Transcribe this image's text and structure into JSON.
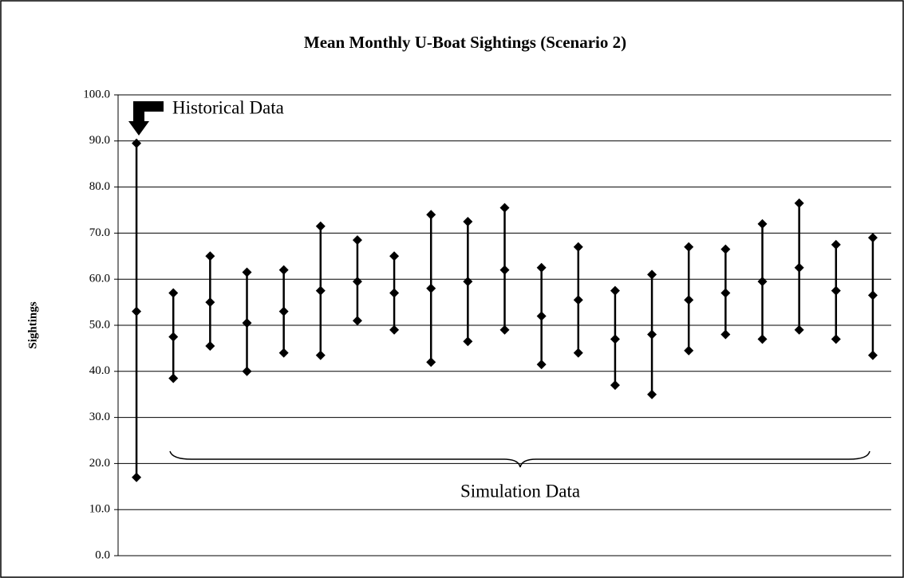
{
  "chart_data": {
    "type": "high-low",
    "title": "Mean Monthly U-Boat Sightings (Scenario 2)",
    "y_label": "Sightings",
    "annotations": [
      "Historical Data",
      "Simulation Data"
    ],
    "categories": [
      null,
      null,
      null,
      null,
      null,
      null,
      null,
      null,
      null,
      null,
      null,
      null,
      null,
      null,
      null,
      null,
      null,
      null,
      null,
      null,
      null
    ],
    "high": [
      89.5,
      57,
      65,
      61.5,
      62,
      71.5,
      68.5,
      65,
      74,
      72.5,
      75.5,
      62.5,
      67,
      57.5,
      61,
      67,
      66.5,
      72,
      76.5,
      67.5,
      69
    ],
    "values": [
      53,
      47.5,
      55,
      50.5,
      53,
      57.5,
      59.5,
      57,
      58,
      59.5,
      62,
      52,
      55.5,
      47,
      48,
      55.5,
      57,
      59.5,
      62.5,
      57.5,
      56.5
    ],
    "low": [
      17,
      38.5,
      45.5,
      40,
      44,
      43.5,
      51,
      49,
      42,
      46.5,
      49,
      41.5,
      44,
      37,
      35,
      44.5,
      48,
      47,
      49,
      47,
      43.5
    ],
    "color": "#000000",
    "ylim": [
      0,
      100
    ],
    "yticks": [
      {
        "value": 0,
        "label": "0.0"
      },
      {
        "value": 10,
        "label": "10.0"
      },
      {
        "value": 20,
        "label": "20.0"
      },
      {
        "value": 30,
        "label": "30.0"
      },
      {
        "value": 40,
        "label": "40.0"
      },
      {
        "value": 50,
        "label": "50.0"
      },
      {
        "value": 60,
        "label": "60.0"
      },
      {
        "value": 70,
        "label": "70.0"
      },
      {
        "value": 80,
        "label": "80.0"
      },
      {
        "value": 90,
        "label": "90.0"
      },
      {
        "value": 100,
        "label": "100.0"
      }
    ],
    "grid": true
  }
}
